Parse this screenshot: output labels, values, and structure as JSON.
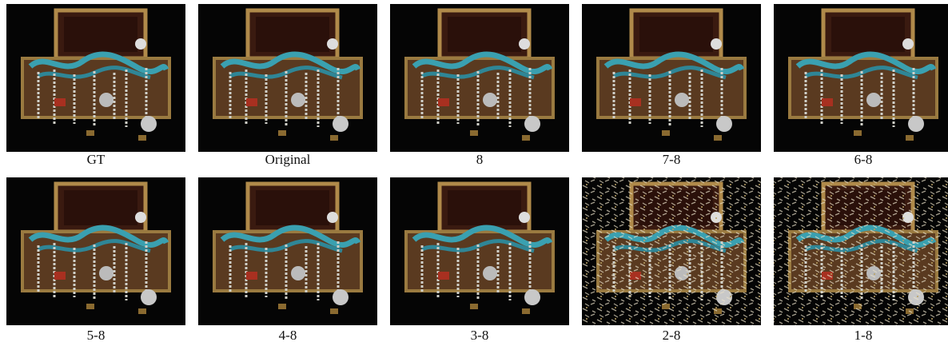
{
  "figure": {
    "panels": [
      {
        "label": "GT"
      },
      {
        "label": "Original"
      },
      {
        "label": "8"
      },
      {
        "label": "7-8"
      },
      {
        "label": "6-8"
      },
      {
        "label": "5-8"
      },
      {
        "label": "4-8"
      },
      {
        "label": "3-8"
      },
      {
        "label": "2-8"
      },
      {
        "label": "1-8"
      }
    ]
  }
}
